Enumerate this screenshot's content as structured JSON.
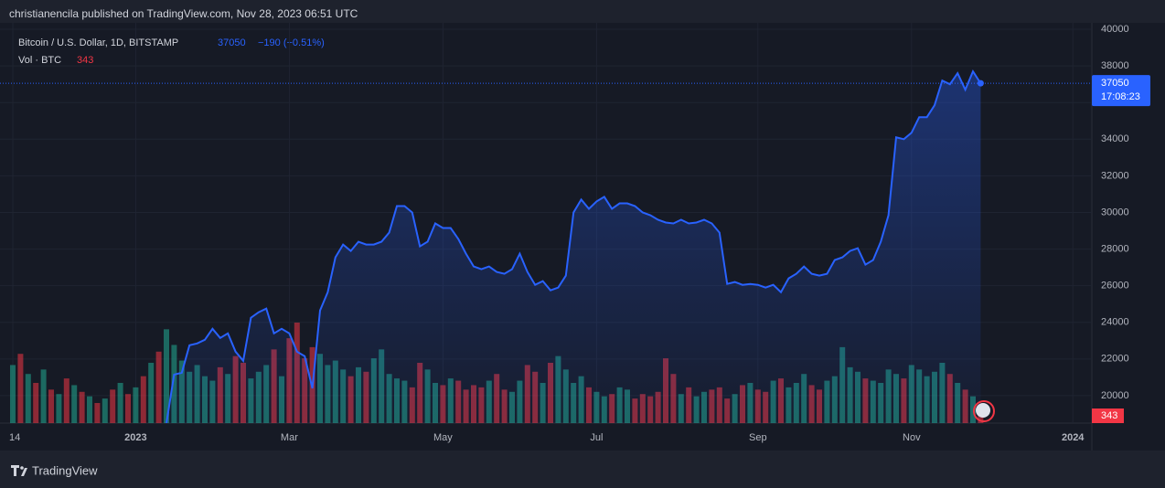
{
  "header": {
    "publisher": "christianencila published on TradingView.com, Nov 28, 2023 06:51 UTC",
    "brand": "TradingView"
  },
  "chart_data": {
    "type": "line",
    "change_label": "−190 (−0.51%)",
    "countdown": "17:08:23",
    "categories": [
      "14",
      null,
      null,
      null,
      null,
      null,
      null,
      null,
      null,
      null,
      null,
      null,
      null,
      null,
      null,
      null,
      "2023",
      null,
      null,
      null,
      null,
      null,
      null,
      null,
      null,
      null,
      null,
      null,
      null,
      null,
      null,
      null,
      null,
      null,
      null,
      null,
      "Mar",
      null,
      null,
      null,
      null,
      null,
      null,
      null,
      null,
      null,
      null,
      null,
      null,
      null,
      null,
      null,
      null,
      null,
      null,
      null,
      "May",
      null,
      null,
      null,
      null,
      null,
      null,
      null,
      null,
      null,
      null,
      null,
      null,
      null,
      null,
      null,
      null,
      null,
      null,
      null,
      "Jul",
      null,
      null,
      null,
      null,
      null,
      null,
      null,
      null,
      null,
      null,
      null,
      null,
      null,
      null,
      null,
      null,
      null,
      null,
      null,
      null,
      "Sep",
      null,
      null,
      null,
      null,
      null,
      null,
      null,
      null,
      null,
      null,
      null,
      null,
      null,
      null,
      null,
      null,
      null,
      null,
      null,
      "Nov",
      null,
      null,
      null,
      null,
      null,
      null,
      null,
      null,
      null,
      null,
      null,
      null,
      null,
      null,
      null,
      null,
      null,
      null,
      null,
      null,
      "2024"
    ],
    "series": [
      {
        "name": "Bitcoin / U.S. Dollar, 1D, BITSTAMP",
        "color": "#2962ff",
        "values": [
          null,
          null,
          null,
          null,
          null,
          null,
          null,
          null,
          null,
          null,
          null,
          null,
          null,
          null,
          null,
          null,
          null,
          null,
          null,
          null,
          18500,
          21150,
          21250,
          22750,
          22850,
          23050,
          23650,
          23150,
          23400,
          22400,
          21900,
          24250,
          24550,
          24750,
          23400,
          23650,
          23400,
          22400,
          22150,
          20400,
          24650,
          25650,
          27550,
          28250,
          27900,
          28400,
          28250,
          28250,
          28400,
          28900,
          30350,
          30350,
          30000,
          28150,
          28400,
          29400,
          29150,
          29150,
          28550,
          27750,
          27050,
          26900,
          27050,
          26750,
          26650,
          26900,
          27750,
          26750,
          26050,
          26250,
          25750,
          25900,
          26550,
          30000,
          30700,
          30200,
          30600,
          30850,
          30200,
          30500,
          30500,
          30350,
          30000,
          29850,
          29600,
          29450,
          29400,
          29600,
          29400,
          29450,
          29600,
          29400,
          28900,
          26100,
          26200,
          26050,
          26100,
          26050,
          25900,
          26050,
          25650,
          26400,
          26650,
          27050,
          26650,
          26550,
          26650,
          27400,
          27550,
          27900,
          28050,
          27150,
          27400,
          28400,
          29850,
          34100,
          34000,
          34350,
          35200,
          35200,
          35850,
          37200,
          37000,
          37600,
          36700,
          37700,
          37050,
          null,
          null,
          null,
          null,
          null,
          null,
          null,
          null,
          null,
          null,
          null,
          null
        ]
      },
      {
        "name": "Vol · BTC",
        "up_color": "rgba(34,171,148,0.55)",
        "down_color": "rgba(242,54,69,0.55)",
        "tag_color": "#f23645",
        "values": [
          2600,
          3100,
          2200,
          1800,
          2400,
          1500,
          1300,
          2000,
          1700,
          1400,
          1200,
          900,
          1100,
          1500,
          1800,
          1300,
          1600,
          2100,
          2700,
          3200,
          4200,
          3500,
          2800,
          2300,
          2600,
          2100,
          1900,
          2500,
          2200,
          3000,
          2700,
          2000,
          2300,
          2600,
          3300,
          2100,
          3800,
          4500,
          2900,
          3400,
          3100,
          2600,
          2800,
          2400,
          2100,
          2500,
          2300,
          2900,
          3300,
          2200,
          2000,
          1900,
          1600,
          2700,
          2400,
          1800,
          1700,
          2000,
          1900,
          1500,
          1700,
          1600,
          1900,
          2200,
          1500,
          1400,
          1900,
          2600,
          2300,
          1800,
          2700,
          3000,
          2400,
          1800,
          2100,
          1600,
          1400,
          1200,
          1300,
          1600,
          1500,
          1100,
          1300,
          1200,
          1400,
          2900,
          2200,
          1300,
          1600,
          1200,
          1400,
          1500,
          1600,
          1100,
          1300,
          1700,
          1800,
          1500,
          1400,
          1900,
          2000,
          1600,
          1800,
          2200,
          1700,
          1500,
          1900,
          2100,
          3400,
          2500,
          2300,
          2000,
          1900,
          1800,
          2400,
          2200,
          2000,
          2600,
          2400,
          2100,
          2300,
          2700,
          2200,
          1800,
          1500,
          1200,
          343,
          null,
          null,
          null,
          null,
          null,
          null,
          null,
          null,
          null,
          null,
          null,
          null
        ]
      }
    ],
    "ylim": [
      18500,
      40350
    ],
    "yticks": [
      20000,
      22000,
      24000,
      26000,
      28000,
      30000,
      32000,
      34000,
      36000,
      38000,
      40000
    ],
    "grid": true
  }
}
